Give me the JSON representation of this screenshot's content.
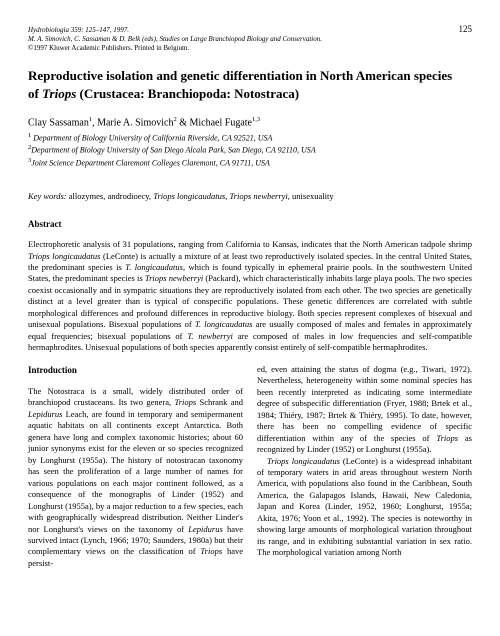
{
  "header": {
    "citation": "Hydrobiologia 359: 125–147, 1997.",
    "editors": "M. A. Simovich, C. Sassaman & D. Belk (eds), Studies on Large Branchiopod Biology and Conservation.",
    "copyright": "©1997 Kluwer Academic Publishers. Printed in Belgium.",
    "page_number": "125"
  },
  "title_parts": {
    "line1_a": "Reproductive isolation and genetic differentiation in North American species",
    "line2_a": "of ",
    "line2_b": "Triops",
    "line2_c": " (Crustacea: Branchiopoda: Notostraca)"
  },
  "authors": {
    "a1": "Clay Sassaman",
    "s1": "1",
    "sep1": ", ",
    "a2": "Marie A. Simovich",
    "s2": "2",
    "sep2": " & ",
    "a3": "Michael Fugate",
    "s3": "1,3"
  },
  "affiliations": {
    "l1": "Department of Biology University of California Riverside, CA 92521, USA",
    "l2": "Department of Biology University of San Diego Alcala Park, San Diego, CA 92110, USA",
    "l3": "Joint Science Department Claremont Colleges Claremont, CA 91711, USA"
  },
  "keywords": {
    "label": "Key words:",
    "pre": "  allozymes, androdioecy, ",
    "i1": "Triops longicaudatus",
    "mid": ", ",
    "i2": "Triops newberryi",
    "post": ", unisexuality"
  },
  "abstract": {
    "head": "Abstract",
    "p1a": "Electrophoretic analysis of 31 populations, ranging from California to Kansas, indicates that the North American tadpole shrimp ",
    "p1b": "Triops longicaudatus",
    "p1c": " (LeConte) is actually a mixture of at least two reproductively isolated species. In the central United States, the predominant species is ",
    "p1d": "T. longicaudatus",
    "p1e": ", which is found typically in ephemeral prairie pools. In the southwestern United States, the predominant species is ",
    "p1f": "Triops newberryi",
    "p1g": " (Packard), which characteristically inhabits large playa pools. The two species coexist occasionally and in sympatric situations they are reproductively isolated from each other. The two species are genetically distinct at a level greater than is typical of conspecific populations. These genetic differences are correlated with subtle morphological differences and profound differences in reproductive biology. Both species represent complexes of bisexual and unisexual populations. Bisexual populations of ",
    "p1h": "T. longicaudatus",
    "p1i": " are usually composed of males and females in approximately equal frequencies; bisexual populations of ",
    "p1j": "T. newberryi",
    "p1k": " are composed of males in low frequencies and self-compatible hermaphrodites. Unisexual populations of both species apparently consist entirely of self-compatible hermaphrodites."
  },
  "intro": {
    "head": "Introduction",
    "left_a": "The Notostraca is a small, widely distributed order of branchiopod crustaceans. Its two genera, ",
    "left_b": "Triops",
    "left_c": " Schrank and ",
    "left_d": "Lepidurus",
    "left_e": " Leach, are found in temporary and semipermanent aquatic habitats on all continents except Antarctica. Both genera have long and complex taxonomic histories; about 60 junior synonyms exist for the eleven or so species recognized by Longhurst (1955a). The history of notostracan taxonomy has seen the proliferation of a large number of names for various populations on each major continent followed, as a consequence of the monographs of Linder (1952) and Longhurst (1955a), by a major reduction to a few species, each with geographically widespread distribution. Neither Linder's nor Longhurst's views on the taxonomy of ",
    "left_f": "Lepidurus",
    "left_g": " have survived intact (Lynch, 1966; 1970; Saunders, 1980a) but their complementary views on the classification of ",
    "left_h": "Triops",
    "left_i": " have persist-",
    "right_a": "ed, even attaining the status of dogma (e.g., Tiwari, 1972). Nevertheless, heterogeneity within some nominal species has been recently interpreted as indicating some intermediate degree of subspecific differentiation (Fryer, 1988; Brtek et al., 1984; Thiéry, 1987; Brtek & Thiéry, 1995). To date, however, there has been no compelling evidence of specific differentiation within any of the species of ",
    "right_b": "Triops",
    "right_c": " as recognized by Linder (1952) or Longhurst (1955a).",
    "right_d": "Triops longicaudatus",
    "right_e": " (LeConte) is a widespread inhabitant of temporary waters in arid areas throughout western North America, with populations also found in the Caribbean, South America, the Galapagos Islands, Hawaii, New Caledonia, Japan and Korea (Linder, 1952, 1960; Longhurst, 1955a; Akita, 1976; Yoon et al., 1992). The species is noteworthy in showing large amounts of morphological variation throughout its range, and in exhibiting substantial variation in sex ratio. The morphological variation among North"
  }
}
